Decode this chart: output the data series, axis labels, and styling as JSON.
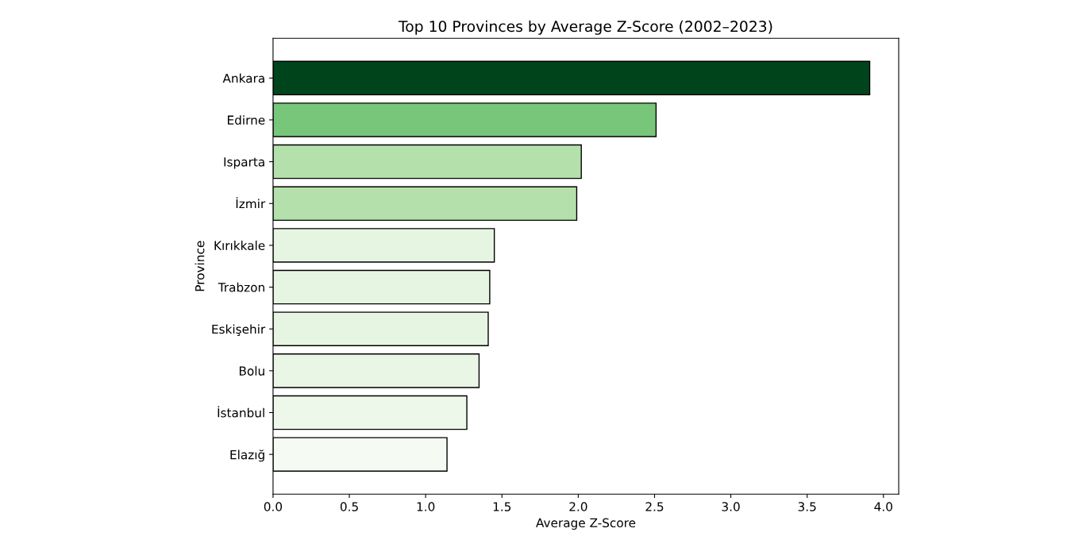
{
  "chart_data": {
    "type": "bar",
    "orientation": "horizontal",
    "title": "Top 10 Provinces by Average Z-Score (2002–2023)",
    "xlabel": "Average Z-Score",
    "ylabel": "Province",
    "categories": [
      "Ankara",
      "Edirne",
      "Isparta",
      "İzmir",
      "Kırıkkale",
      "Trabzon",
      "Eskişehir",
      "Bolu",
      "İstanbul",
      "Elazığ"
    ],
    "values": [
      3.91,
      2.51,
      2.02,
      1.99,
      1.45,
      1.42,
      1.41,
      1.35,
      1.27,
      1.14
    ],
    "colors": [
      "#00441b",
      "#78c679",
      "#b3e0ab",
      "#b3e0ab",
      "#e6f5e1",
      "#e6f5e1",
      "#e6f5e1",
      "#e9f6e5",
      "#edf8ea",
      "#f5fbf3"
    ],
    "xlim": [
      0,
      4.1
    ],
    "xticks": [
      {
        "value": 0,
        "label": "0.0"
      },
      {
        "value": 0.5,
        "label": "0.5"
      },
      {
        "value": 1,
        "label": "1.0"
      },
      {
        "value": 1.5,
        "label": "1.5"
      },
      {
        "value": 2,
        "label": "2.0"
      },
      {
        "value": 2.5,
        "label": "2.5"
      },
      {
        "value": 3,
        "label": "3.0"
      },
      {
        "value": 3.5,
        "label": "3.5"
      },
      {
        "value": 4,
        "label": "4.0"
      }
    ],
    "grid": false,
    "legend": false
  }
}
